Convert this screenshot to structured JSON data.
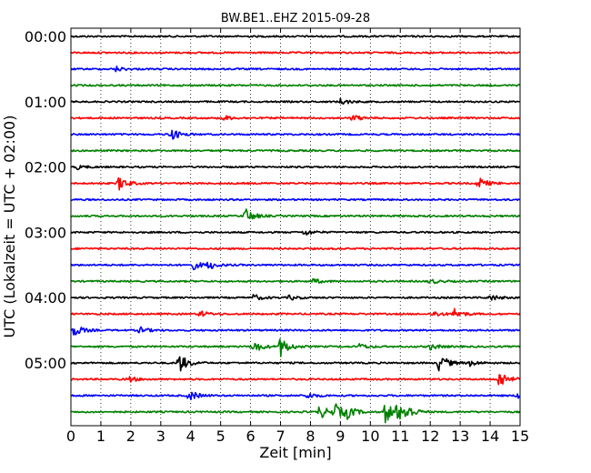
{
  "chart_data": {
    "type": "line",
    "title": "BW.BE1..EHZ 2015-09-28",
    "xlabel": "Zeit  [min]",
    "ylabel": "UTC (Lokalzeit = UTC + 02:00)",
    "xlim": [
      0,
      15
    ],
    "x_ticks": [
      "0",
      "1",
      "2",
      "3",
      "4",
      "5",
      "6",
      "7",
      "8",
      "9",
      "10",
      "11",
      "12",
      "13",
      "14",
      "15"
    ],
    "y_ticks": [
      "00:00",
      "01:00",
      "02:00",
      "03:00",
      "04:00",
      "05:00"
    ],
    "grid": "vertical dotted",
    "colors": [
      "#000000",
      "#ff0000",
      "#0000ff",
      "#008000"
    ],
    "traces": [
      {
        "start": "00:00",
        "events": []
      },
      {
        "start": "00:15",
        "events": []
      },
      {
        "start": "00:30",
        "events": [
          [
            1.5,
            1.2
          ]
        ]
      },
      {
        "start": "00:45",
        "events": []
      },
      {
        "start": "01:00",
        "events": [
          [
            9.0,
            1.5
          ]
        ]
      },
      {
        "start": "01:15",
        "events": [
          [
            5.1,
            1.2
          ],
          [
            9.4,
            1.5
          ]
        ]
      },
      {
        "start": "01:30",
        "events": [
          [
            3.3,
            3.5
          ]
        ]
      },
      {
        "start": "01:45",
        "events": []
      },
      {
        "start": "02:00",
        "events": [
          [
            0.2,
            1.0
          ]
        ]
      },
      {
        "start": "02:15",
        "events": [
          [
            1.6,
            3.5
          ],
          [
            13.6,
            3.0
          ]
        ]
      },
      {
        "start": "02:30",
        "events": []
      },
      {
        "start": "02:45",
        "events": [
          [
            5.8,
            4.0
          ]
        ]
      },
      {
        "start": "03:00",
        "events": [
          [
            7.8,
            1.5
          ]
        ]
      },
      {
        "start": "03:15",
        "events": []
      },
      {
        "start": "03:30",
        "events": [
          [
            4.1,
            2.0
          ],
          [
            4.6,
            2.0
          ]
        ]
      },
      {
        "start": "03:45",
        "events": [
          [
            8.1,
            1.2
          ],
          [
            12.0,
            1.2
          ]
        ]
      },
      {
        "start": "04:00",
        "events": [
          [
            6.1,
            1.5
          ],
          [
            7.3,
            1.2
          ],
          [
            14.0,
            1.5
          ]
        ]
      },
      {
        "start": "04:15",
        "events": [
          [
            4.3,
            1.5
          ],
          [
            12.1,
            1.5
          ],
          [
            12.8,
            2.5
          ]
        ]
      },
      {
        "start": "04:30",
        "events": [
          [
            0.1,
            3.0
          ],
          [
            2.3,
            1.5
          ]
        ]
      },
      {
        "start": "04:45",
        "events": [
          [
            6.1,
            3.0
          ],
          [
            7.0,
            5.0
          ],
          [
            9.6,
            1.5
          ],
          [
            12.0,
            1.5
          ]
        ]
      },
      {
        "start": "05:00",
        "events": [
          [
            3.6,
            5.0
          ],
          [
            12.3,
            4.5
          ],
          [
            13.3,
            1.5
          ]
        ]
      },
      {
        "start": "05:15",
        "events": [
          [
            1.9,
            1.5
          ],
          [
            14.3,
            4.5
          ]
        ]
      },
      {
        "start": "05:30",
        "events": [
          [
            3.9,
            1.0
          ],
          [
            4.0,
            1.5
          ],
          [
            7.9,
            1.5
          ],
          [
            14.9,
            1.5
          ]
        ]
      },
      {
        "start": "05:45",
        "events": [
          [
            8.3,
            3.5
          ],
          [
            8.8,
            4.0
          ],
          [
            9.2,
            3.0
          ],
          [
            10.5,
            5.5
          ],
          [
            10.9,
            3.5
          ],
          [
            11.2,
            3.0
          ]
        ]
      }
    ]
  }
}
